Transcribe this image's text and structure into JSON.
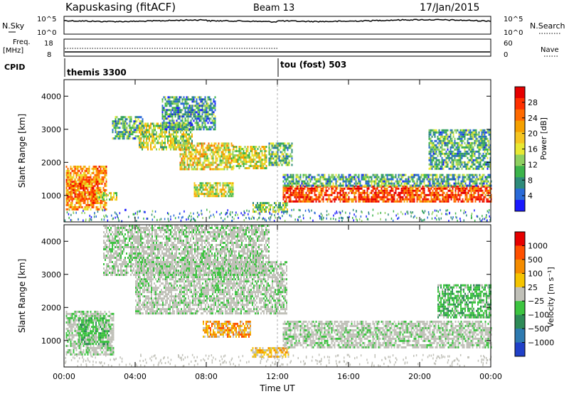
{
  "header": {
    "station": "Kapuskasing (fitACF)",
    "beam": "Beam 13",
    "date": "17/Jan/2015"
  },
  "top_panels": {
    "nsky_label": "N.Sky",
    "nsearch_label": "N.Search",
    "nsky_ticks": [
      "10^5",
      "10^0"
    ],
    "nsearch_ticks": [
      "10^5",
      "10^0"
    ],
    "freq_label_1": "Freq.",
    "freq_label_2": "[MHz]",
    "freq_ticks": [
      "18",
      "8"
    ],
    "nave_label": "Nave",
    "nave_ticks": [
      "60",
      "0"
    ],
    "cpid_label": "CPID",
    "cpid_segments": [
      {
        "label": "themis 3300",
        "start_hour": 0
      },
      {
        "label": "tou (fost) 503",
        "start_hour": 12
      }
    ],
    "divider_hour": 12
  },
  "chart_data": [
    {
      "type": "heatmap",
      "name": "power",
      "ylabel": "Slant Range [km]",
      "xlabel": "",
      "x_unit": "hours",
      "xlim": [
        0,
        24
      ],
      "ylim": [
        200,
        4500
      ],
      "yticks": [
        1000,
        2000,
        3000,
        4000
      ],
      "colorbar": {
        "label": "Power [dB]",
        "ticks": [
          "28",
          "24",
          "20",
          "16",
          "12",
          "8",
          "4"
        ],
        "colors": [
          "#1a1aff",
          "#2a6ad8",
          "#2e8b7a",
          "#3cb44b",
          "#8fd060",
          "#e8e832",
          "#f5c520",
          "#f5a000",
          "#ff6a00",
          "#ff3000",
          "#e60000"
        ]
      },
      "regions": [
        {
          "hours": [
            0.1,
            1.9
          ],
          "range_km": [
            900,
            1500
          ],
          "level": 0.95
        },
        {
          "hours": [
            0.1,
            2.4
          ],
          "range_km": [
            600,
            1900
          ],
          "level": 0.7
        },
        {
          "hours": [
            1.8,
            3.0
          ],
          "range_km": [
            850,
            1100
          ],
          "level": 0.5
        },
        {
          "hours": [
            2.7,
            4.5
          ],
          "range_km": [
            2700,
            3400
          ],
          "level": 0.3
        },
        {
          "hours": [
            4.2,
            7.2
          ],
          "range_km": [
            2400,
            3200
          ],
          "level": 0.45
        },
        {
          "hours": [
            6.5,
            9.5
          ],
          "range_km": [
            1800,
            2600
          ],
          "level": 0.55
        },
        {
          "hours": [
            7.3,
            9.5
          ],
          "range_km": [
            1000,
            1400
          ],
          "level": 0.5
        },
        {
          "hours": [
            9.5,
            11.4
          ],
          "range_km": [
            1800,
            2500
          ],
          "level": 0.5
        },
        {
          "hours": [
            10.6,
            12.6
          ],
          "range_km": [
            500,
            800
          ],
          "level": 0.4
        },
        {
          "hours": [
            11.5,
            12.8
          ],
          "range_km": [
            1900,
            2600
          ],
          "level": 0.35
        },
        {
          "hours": [
            12.3,
            24.0
          ],
          "range_km": [
            800,
            1300
          ],
          "level": 0.85
        },
        {
          "hours": [
            12.3,
            24.0
          ],
          "range_km": [
            1300,
            1650
          ],
          "level": 0.3
        },
        {
          "hours": [
            5.5,
            8.5
          ],
          "range_km": [
            3000,
            4000
          ],
          "level": 0.25
        },
        {
          "hours": [
            20.5,
            24.0
          ],
          "range_km": [
            1800,
            3000
          ],
          "level": 0.3
        }
      ]
    },
    {
      "type": "heatmap",
      "name": "velocity",
      "ylabel": "Slant Range [km]",
      "xlabel": "Time UT",
      "x_unit": "hours",
      "xlim": [
        0,
        24
      ],
      "ylim": [
        200,
        4500
      ],
      "yticks": [
        1000,
        2000,
        3000,
        4000
      ],
      "xticks": [
        "00:00",
        "04:00",
        "08:00",
        "12:00",
        "16:00",
        "20:00",
        "00:00"
      ],
      "colorbar": {
        "label": "Velocity [m s⁻¹]",
        "ticks": [
          "1000",
          "500",
          "100",
          "25",
          "−25",
          "−100",
          "−500",
          "−1000"
        ],
        "colors": [
          "#2040c8",
          "#2e7ab0",
          "#2e8b57",
          "#3cc440",
          "#c0c0b8",
          "#f5c400",
          "#f58c00",
          "#ff5000",
          "#e60000"
        ]
      },
      "regions": [
        {
          "hours": [
            0.1,
            2.8
          ],
          "range_km": [
            600,
            1900
          ],
          "class": "ground"
        },
        {
          "hours": [
            0.8,
            2.5
          ],
          "range_km": [
            900,
            1700
          ],
          "class": "green"
        },
        {
          "hours": [
            4.0,
            12.5
          ],
          "range_km": [
            1800,
            3400
          ],
          "class": "ground"
        },
        {
          "hours": [
            7.8,
            10.5
          ],
          "range_km": [
            1100,
            1600
          ],
          "class": "orange"
        },
        {
          "hours": [
            10.5,
            12.6
          ],
          "range_km": [
            500,
            800
          ],
          "class": "yellow"
        },
        {
          "hours": [
            12.3,
            24.0
          ],
          "range_km": [
            800,
            1600
          ],
          "class": "ground"
        },
        {
          "hours": [
            21.0,
            24.0
          ],
          "range_km": [
            1700,
            2700
          ],
          "class": "green"
        },
        {
          "hours": [
            2.2,
            11.5
          ],
          "range_km": [
            3000,
            4500
          ],
          "class": "ground"
        }
      ]
    }
  ]
}
